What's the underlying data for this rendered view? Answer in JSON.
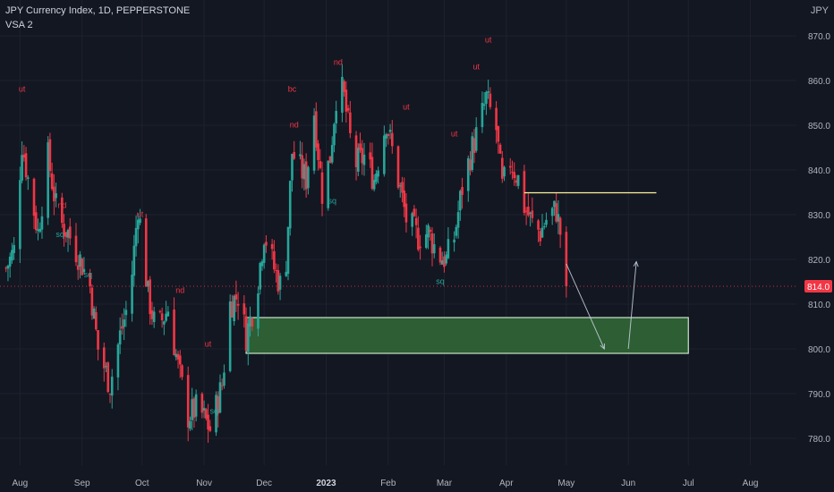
{
  "header": {
    "title": "JPY Currency Index, 1D, PEPPERSTONE",
    "indicator": "VSA 2",
    "currency": "JPY"
  },
  "price_badge": {
    "value": "814.0",
    "color": "#f23645"
  },
  "colors": {
    "background": "#131722",
    "up": "#26a69a",
    "down": "#f23645",
    "zone_fill": "#2e5e34",
    "zone_border": "#c8e6c9",
    "resistance_line": "#fff59d",
    "projection": "#c8d4e0"
  },
  "chart_data": {
    "type": "candlestick",
    "ylim": [
      774,
      878
    ],
    "y_ticks": [
      "780.0",
      "790.0",
      "800.0",
      "810.0",
      "820.0",
      "830.0",
      "840.0",
      "850.0",
      "860.0",
      "870.0"
    ],
    "x_ticks": [
      "Aug",
      "Sep",
      "Oct",
      "Nov",
      "Dec",
      "2023",
      "Feb",
      "Mar",
      "Apr",
      "May",
      "Jun",
      "Jul",
      "Aug"
    ],
    "price_path": [
      [
        "2022-07-25",
        818
      ],
      [
        "2022-07-29",
        822
      ],
      [
        "2022-08-02",
        846
      ],
      [
        "2022-08-05",
        838
      ],
      [
        "2022-08-10",
        826
      ],
      [
        "2022-08-15",
        843
      ],
      [
        "2022-08-20",
        829
      ],
      [
        "2022-08-25",
        826
      ],
      [
        "2022-08-31",
        820
      ],
      [
        "2022-09-05",
        814
      ],
      [
        "2022-09-09",
        800
      ],
      [
        "2022-09-15",
        792
      ],
      [
        "2022-09-20",
        803
      ],
      [
        "2022-09-25",
        812
      ],
      [
        "2022-09-29",
        832
      ],
      [
        "2022-10-04",
        812
      ],
      [
        "2022-10-08",
        804
      ],
      [
        "2022-10-14",
        809
      ],
      [
        "2022-10-19",
        796
      ],
      [
        "2022-10-24",
        785
      ],
      [
        "2022-10-29",
        787
      ],
      [
        "2022-11-04",
        782
      ],
      [
        "2022-11-10",
        792
      ],
      [
        "2022-11-14",
        810
      ],
      [
        "2022-11-18",
        812
      ],
      [
        "2022-11-22",
        803
      ],
      [
        "2022-11-27",
        812
      ],
      [
        "2022-12-01",
        826
      ],
      [
        "2022-12-06",
        818
      ],
      [
        "2022-12-11",
        812
      ],
      [
        "2022-12-15",
        844
      ],
      [
        "2022-12-18",
        841
      ],
      [
        "2022-12-22",
        838
      ],
      [
        "2022-12-26",
        853
      ],
      [
        "2022-12-30",
        835
      ],
      [
        "2023-01-03",
        843
      ],
      [
        "2023-01-07",
        861
      ],
      [
        "2023-01-10",
        856
      ],
      [
        "2023-01-15",
        841
      ],
      [
        "2023-01-20",
        843
      ],
      [
        "2023-01-25",
        838
      ],
      [
        "2023-01-31",
        851
      ],
      [
        "2023-02-05",
        840
      ],
      [
        "2023-02-10",
        829
      ],
      [
        "2023-02-16",
        825
      ],
      [
        "2023-02-21",
        826
      ],
      [
        "2023-02-26",
        821
      ],
      [
        "2023-03-02",
        820
      ],
      [
        "2023-03-06",
        825
      ],
      [
        "2023-03-10",
        836
      ],
      [
        "2023-03-15",
        845
      ],
      [
        "2023-03-18",
        849
      ],
      [
        "2023-03-22",
        856
      ],
      [
        "2023-03-27",
        849
      ],
      [
        "2023-03-30",
        836
      ],
      [
        "2023-04-03",
        842
      ],
      [
        "2023-04-07",
        838
      ],
      [
        "2023-04-10",
        832
      ],
      [
        "2023-04-14",
        828
      ],
      [
        "2023-04-18",
        826
      ],
      [
        "2023-04-22",
        830
      ],
      [
        "2023-04-26",
        831
      ],
      [
        "2023-04-28",
        826
      ],
      [
        "2023-05-01",
        814
      ]
    ],
    "last_price": 814.0,
    "demand_zone": {
      "from": "2022-11-22",
      "to": "2023-07-01",
      "low": 799,
      "high": 807
    },
    "resistance_line": {
      "from": "2023-04-10",
      "to": "2023-06-15",
      "price": 834.9
    },
    "projection": [
      {
        "from": [
          "2023-05-01",
          819
        ],
        "to": [
          "2023-05-20",
          800
        ]
      },
      {
        "from": [
          "2023-06-01",
          800
        ],
        "to": [
          "2023-06-05",
          819.5
        ]
      }
    ],
    "markers": [
      {
        "label": "ut",
        "date": "2022-08-02",
        "price": 857.5,
        "color": "#f23645"
      },
      {
        "label": "ut",
        "date": "2022-09-30",
        "price": 829.5,
        "color": "#f23645"
      },
      {
        "label": "ut",
        "date": "2022-11-03",
        "price": 800.5,
        "color": "#f23645"
      },
      {
        "label": "bc",
        "date": "2022-12-15",
        "price": 857.5,
        "color": "#f23645"
      },
      {
        "label": "ut",
        "date": "2023-02-10",
        "price": 853.5,
        "color": "#f23645"
      },
      {
        "label": "ut",
        "date": "2023-03-17",
        "price": 862.5,
        "color": "#f23645"
      },
      {
        "label": "ut",
        "date": "2023-03-23",
        "price": 868.5,
        "color": "#f23645"
      },
      {
        "label": "ut",
        "date": "2023-03-06",
        "price": 847.5,
        "color": "#f23645"
      },
      {
        "label": "nd",
        "date": "2022-12-16",
        "price": 849.5,
        "color": "#f23645"
      },
      {
        "label": "nd",
        "date": "2023-01-07",
        "price": 863.5,
        "color": "#f23645"
      },
      {
        "label": "nd",
        "date": "2022-08-22",
        "price": 831.5,
        "color": "#f23645"
      },
      {
        "label": "nd",
        "date": "2022-10-20",
        "price": 812.5,
        "color": "#f23645"
      },
      {
        "label": "sq",
        "date": "2022-08-21",
        "price": 825.0,
        "color": "#26a69a"
      },
      {
        "label": "sq",
        "date": "2022-09-04",
        "price": 816.0,
        "color": "#26a69a"
      },
      {
        "label": "sq",
        "date": "2023-02-27",
        "price": 814.5,
        "color": "#26a69a"
      },
      {
        "label": "sq",
        "date": "2022-11-06",
        "price": 785.5,
        "color": "#26a69a"
      },
      {
        "label": "sq",
        "date": "2023-01-04",
        "price": 832.5,
        "color": "#26a69a"
      }
    ]
  }
}
